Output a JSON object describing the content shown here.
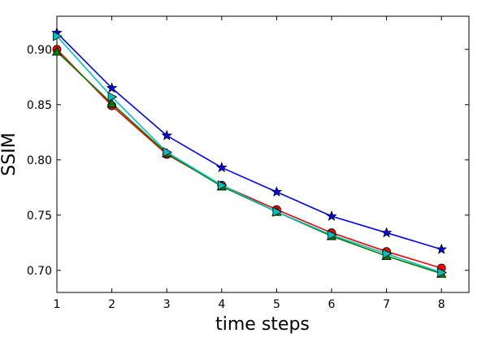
{
  "chart_data": {
    "type": "line",
    "xlabel": "time steps",
    "ylabel": "SSIM",
    "xlim": [
      1,
      8.5
    ],
    "ylim": [
      0.68,
      0.93
    ],
    "x_ticks": [
      1,
      2,
      3,
      4,
      5,
      6,
      7,
      8
    ],
    "y_ticks": [
      0.7,
      0.75,
      0.8,
      0.85,
      0.9
    ],
    "x": [
      1,
      2,
      3,
      4,
      5,
      6,
      7,
      8
    ],
    "grid": false,
    "series": [
      {
        "color": "#0000ff",
        "marker": "star",
        "values": [
          0.915,
          0.865,
          0.822,
          0.793,
          0.771,
          0.749,
          0.734,
          0.719
        ]
      },
      {
        "color": "#ff0000",
        "marker": "circle",
        "values": [
          0.9,
          0.849,
          0.805,
          0.777,
          0.755,
          0.734,
          0.717,
          0.702
        ]
      },
      {
        "color": "#008000",
        "marker": "triangle-up",
        "values": [
          0.898,
          0.851,
          0.806,
          0.776,
          0.753,
          0.731,
          0.713,
          0.697
        ]
      },
      {
        "color": "#00bfbf",
        "marker": "triangle-right",
        "values": [
          0.912,
          0.857,
          0.807,
          0.777,
          0.753,
          0.732,
          0.715,
          0.698
        ]
      }
    ]
  }
}
